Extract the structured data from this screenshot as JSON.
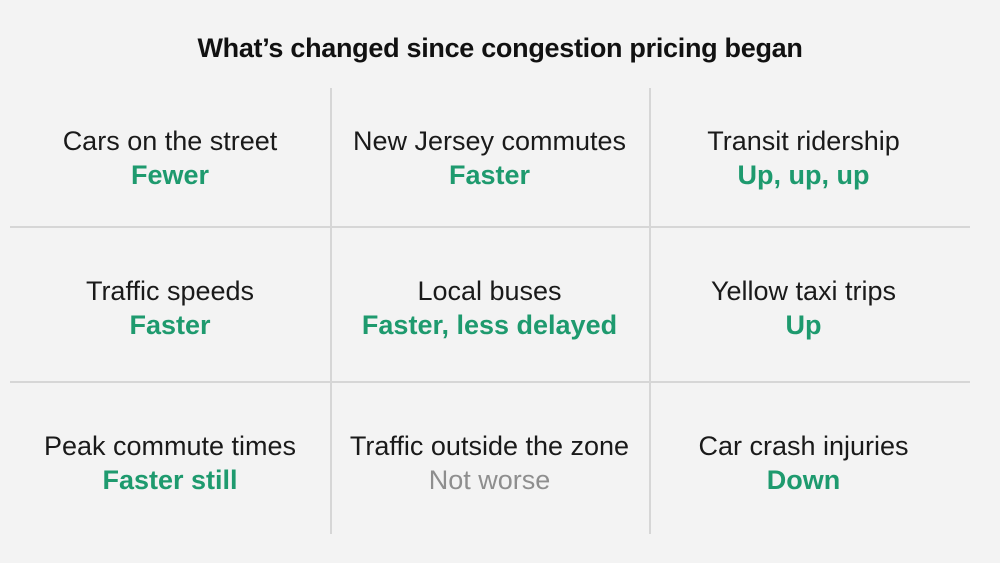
{
  "title": "What’s changed since congestion pricing began",
  "colors": {
    "background": "#f3f3f3",
    "accent_green": "#1e9a6e",
    "neutral_gray": "#8e8e8e",
    "divider": "#d6d6d6"
  },
  "cells": [
    {
      "label": "Cars on the street",
      "value": "Fewer",
      "tone": "green"
    },
    {
      "label": "New Jersey commutes",
      "value": "Faster",
      "tone": "green"
    },
    {
      "label": "Transit ridership",
      "value": "Up, up, up",
      "tone": "green"
    },
    {
      "label": "Traffic speeds",
      "value": "Faster",
      "tone": "green"
    },
    {
      "label": "Local buses",
      "value": "Faster, less delayed",
      "tone": "green"
    },
    {
      "label": "Yellow taxi trips",
      "value": "Up",
      "tone": "green"
    },
    {
      "label": "Peak commute times",
      "value": "Faster still",
      "tone": "green"
    },
    {
      "label": "Traffic outside the zone",
      "value": "Not worse",
      "tone": "gray"
    },
    {
      "label": "Car crash injuries",
      "value": "Down",
      "tone": "green"
    }
  ]
}
